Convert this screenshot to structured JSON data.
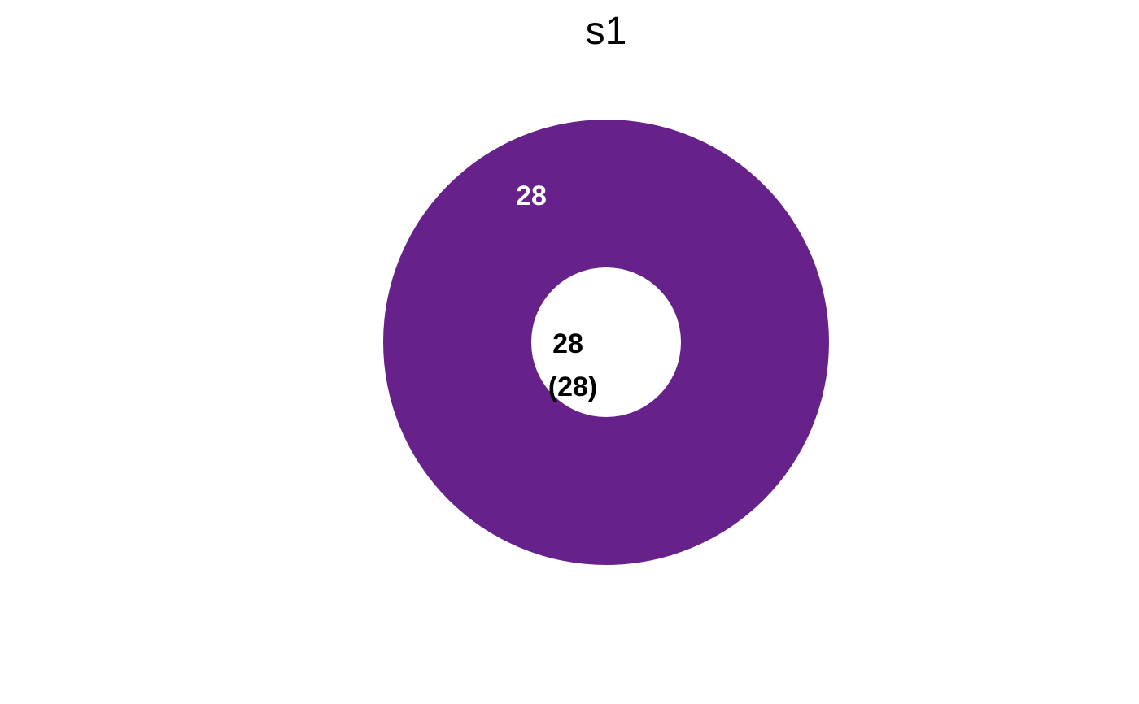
{
  "chart_data": {
    "type": "pie",
    "title": "s1",
    "categories": [
      ""
    ],
    "values": [
      28
    ],
    "data_labels": [
      "28"
    ],
    "center_labels": [
      "28",
      "(28)"
    ],
    "colors": [
      "#66228a"
    ],
    "data_label_color": "#ffffff",
    "legend": "none",
    "grid": false
  }
}
